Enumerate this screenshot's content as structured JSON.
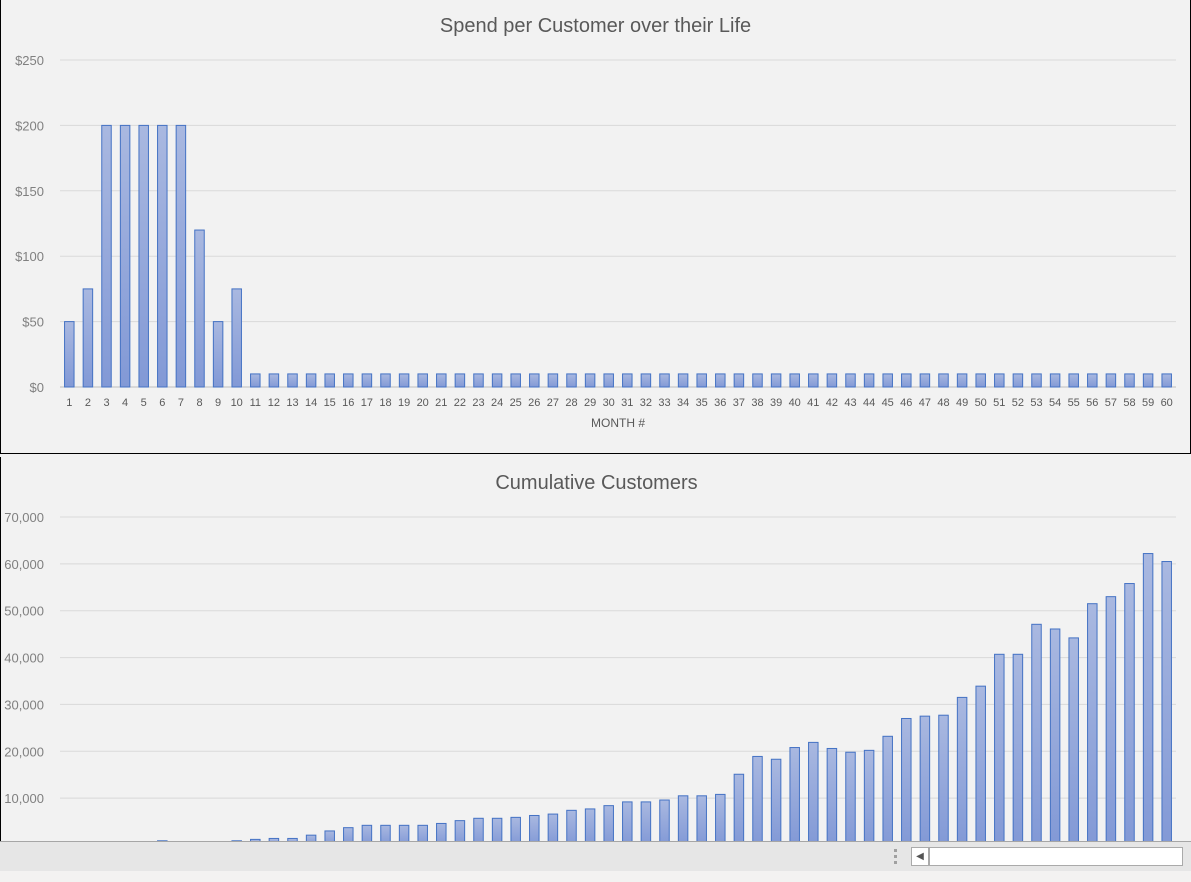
{
  "chart_data": [
    {
      "type": "bar",
      "title": "Spend per Customer over their Life",
      "xlabel": "MONTH #",
      "ylabel": "",
      "ylim": [
        0,
        250
      ],
      "yticks": [
        "$0",
        "$50",
        "$100",
        "$150",
        "$200",
        "$250"
      ],
      "yticks_values": [
        0,
        50,
        100,
        150,
        200,
        250
      ],
      "grid": true,
      "categories": [
        "1",
        "2",
        "3",
        "4",
        "5",
        "6",
        "7",
        "8",
        "9",
        "10",
        "11",
        "12",
        "13",
        "14",
        "15",
        "16",
        "17",
        "18",
        "19",
        "20",
        "21",
        "22",
        "23",
        "24",
        "25",
        "26",
        "27",
        "28",
        "29",
        "30",
        "31",
        "32",
        "33",
        "34",
        "35",
        "36",
        "37",
        "38",
        "39",
        "40",
        "41",
        "42",
        "43",
        "44",
        "45",
        "46",
        "47",
        "48",
        "49",
        "50",
        "51",
        "52",
        "53",
        "54",
        "55",
        "56",
        "57",
        "58",
        "59",
        "60"
      ],
      "values": [
        50,
        75,
        200,
        200,
        200,
        200,
        200,
        120,
        50,
        75,
        10,
        10,
        10,
        10,
        10,
        10,
        10,
        10,
        10,
        10,
        10,
        10,
        10,
        10,
        10,
        10,
        10,
        10,
        10,
        10,
        10,
        10,
        10,
        10,
        10,
        10,
        10,
        10,
        10,
        10,
        10,
        10,
        10,
        10,
        10,
        10,
        10,
        10,
        10,
        10,
        10,
        10,
        10,
        10,
        10,
        10,
        10,
        10,
        10,
        10
      ],
      "color": "#8fa6dc",
      "border_color": "#4472c4"
    },
    {
      "type": "bar",
      "title": "Cumulative Customers",
      "xlabel": "",
      "ylabel": "",
      "ylim": [
        0,
        70000
      ],
      "yticks": [
        "10,000",
        "20,000",
        "30,000",
        "40,000",
        "50,000",
        "60,000",
        "70,000"
      ],
      "yticks_values": [
        10000,
        20000,
        30000,
        40000,
        50000,
        60000,
        70000
      ],
      "grid": true,
      "values": [
        0,
        0,
        0,
        300,
        300,
        900,
        700,
        600,
        600,
        900,
        1200,
        1400,
        1400,
        2100,
        3000,
        3700,
        4200,
        4200,
        4200,
        4200,
        4600,
        5200,
        5700,
        5700,
        5900,
        6300,
        6600,
        7400,
        7700,
        8400,
        9200,
        9200,
        9600,
        10500,
        10500,
        10800,
        15100,
        18900,
        18300,
        20800,
        21900,
        20600,
        19800,
        20200,
        23200,
        27000,
        27500,
        27700,
        31500,
        33900,
        40700,
        40700,
        47100,
        46100,
        44200,
        51500,
        53000,
        55800,
        62200,
        60500
      ],
      "color": "#8fa6dc",
      "border_color": "#4472c4"
    }
  ],
  "statusbar": {
    "scroll_left_icon": "triangle-left"
  }
}
